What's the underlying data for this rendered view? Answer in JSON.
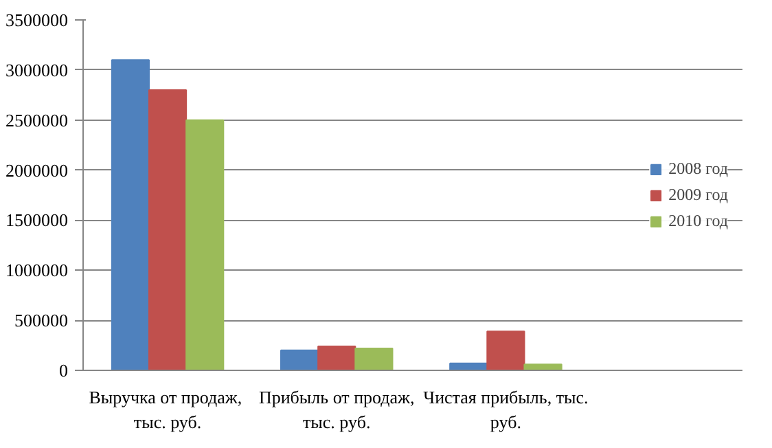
{
  "chart_data": {
    "type": "bar",
    "categories": [
      "Выручка от  продаж, тыс. руб.",
      "Прибыль от продаж, тыс. руб.",
      "Чистая прибыль, тыс. руб."
    ],
    "series": [
      {
        "name": "2008 год",
        "color": "#4f81bd",
        "values": [
          3100000,
          200000,
          70000
        ]
      },
      {
        "name": "2009 год",
        "color": "#c0504d",
        "values": [
          2800000,
          240000,
          390000
        ]
      },
      {
        "name": "2010 год",
        "color": "#9bbb59",
        "values": [
          2500000,
          220000,
          60000
        ]
      }
    ],
    "ylim": [
      0,
      3500000
    ],
    "yticks": [
      0,
      500000,
      1000000,
      1500000,
      2000000,
      2500000,
      3000000,
      3500000
    ],
    "grid": "y",
    "legend": "right"
  }
}
